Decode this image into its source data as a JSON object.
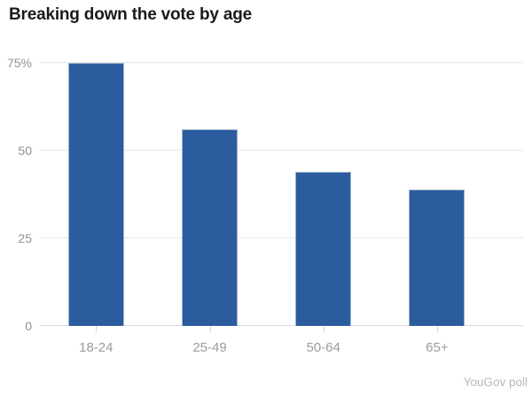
{
  "title": "Breaking down the vote by age",
  "source": "YouGov poll",
  "chart_data": {
    "type": "bar",
    "title": "Breaking down the vote by age",
    "categories": [
      "18-24",
      "25-49",
      "50-64",
      "65+"
    ],
    "values": [
      75,
      56,
      44,
      39
    ],
    "xlabel": "",
    "ylabel": "",
    "ylim": [
      0,
      75
    ],
    "yticks": [
      {
        "label": "75%",
        "value": 75
      },
      {
        "label": "50",
        "value": 50
      },
      {
        "label": "25",
        "value": 25
      },
      {
        "label": "0",
        "value": 0
      }
    ],
    "grid": true,
    "legend": "none",
    "bar_color": "#2b5c9e",
    "source": "YouGov poll"
  },
  "colors": {
    "bar": "#2b5c9e",
    "title_text": "#1a1a1a",
    "axis_text": "#9b9b9b",
    "gridline": "#e9e9e9",
    "source_text": "#b9b9b9",
    "background": "#ffffff"
  }
}
